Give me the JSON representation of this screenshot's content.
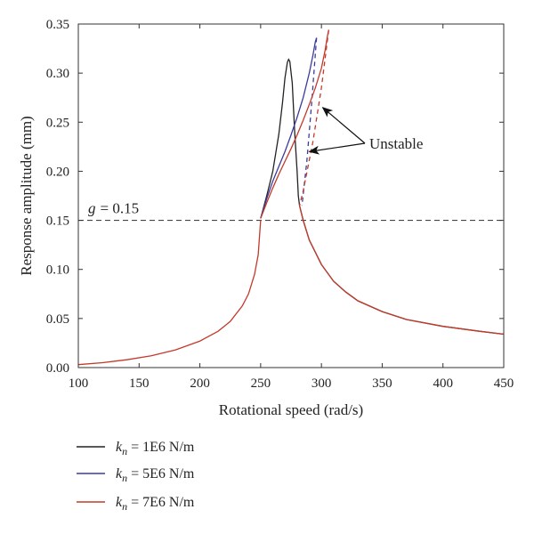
{
  "chart_data": {
    "type": "line",
    "title": "",
    "xlabel": "Rotational speed (rad/s)",
    "ylabel": "Response amplitude (mm)",
    "xlim": [
      100,
      450
    ],
    "ylim": [
      0,
      0.35
    ],
    "xticks": [
      "100",
      "150",
      "200",
      "250",
      "300",
      "350",
      "400",
      "450"
    ],
    "yticks": [
      "0.00",
      "0.05",
      "0.10",
      "0.15",
      "0.20",
      "0.25",
      "0.30",
      "0.35"
    ],
    "xtick_values": [
      100,
      150,
      200,
      250,
      300,
      350,
      400,
      450
    ],
    "ytick_values": [
      0,
      0.05,
      0.1,
      0.15,
      0.2,
      0.25,
      0.3,
      0.35
    ],
    "grid": false,
    "legend_position": "below",
    "threshold": {
      "label_symbol": "g",
      "label_value": "= 0.15",
      "y": 0.15,
      "color": "#444444"
    },
    "annotation": {
      "text": "Unstable",
      "targets": [
        {
          "x": 301,
          "y": 0.265
        },
        {
          "x": 290,
          "y": 0.22
        }
      ]
    },
    "shared_tail": {
      "color": "#c23a2a",
      "x": [
        100,
        120,
        140,
        160,
        180,
        200,
        215,
        225,
        235,
        240,
        245,
        248,
        250
      ],
      "y": [
        0.003,
        0.005,
        0.008,
        0.012,
        0.018,
        0.027,
        0.037,
        0.047,
        0.063,
        0.075,
        0.095,
        0.115,
        0.15
      ]
    },
    "series": [
      {
        "legend_symbol": "k",
        "legend_sub": "n",
        "legend_text": "= 1E6 N/m",
        "color": "#222222",
        "stable_upper": {
          "x": [
            250,
            255,
            260,
            265,
            268,
            270,
            272,
            273,
            274,
            276,
            278,
            280,
            281,
            282
          ],
          "y": [
            0.152,
            0.175,
            0.2,
            0.238,
            0.27,
            0.295,
            0.311,
            0.314,
            0.312,
            0.29,
            0.24,
            0.2,
            0.175,
            0.165
          ]
        },
        "stable_lower": {
          "x": [
            282,
            285,
            290,
            300,
            310,
            320,
            330,
            350,
            370,
            400,
            430,
            450
          ],
          "y": [
            0.165,
            0.15,
            0.13,
            0.105,
            0.088,
            0.077,
            0.068,
            0.057,
            0.049,
            0.042,
            0.037,
            0.034
          ]
        },
        "unstable": {
          "x": [],
          "y": []
        }
      },
      {
        "legend_symbol": "k",
        "legend_sub": "n",
        "legend_text": "= 5E6 N/m",
        "color": "#3b3b9c",
        "stable_upper": {
          "x": [
            250,
            255,
            260,
            265,
            270,
            275,
            280,
            285,
            290,
            293,
            295,
            296
          ],
          "y": [
            0.152,
            0.172,
            0.19,
            0.205,
            0.22,
            0.237,
            0.255,
            0.275,
            0.3,
            0.318,
            0.332,
            0.336
          ]
        },
        "stable_lower": {
          "x": [],
          "y": []
        },
        "unstable": {
          "x": [
            296,
            292,
            288,
            284
          ],
          "y": [
            0.336,
            0.27,
            0.21,
            0.165
          ]
        }
      },
      {
        "legend_symbol": "k",
        "legend_sub": "n",
        "legend_text": "= 7E6 N/m",
        "color": "#c23a2a",
        "stable_upper": {
          "x": [
            250,
            255,
            260,
            265,
            270,
            275,
            280,
            285,
            290,
            295,
            300,
            303,
            305,
            306
          ],
          "y": [
            0.152,
            0.168,
            0.183,
            0.197,
            0.21,
            0.223,
            0.237,
            0.252,
            0.268,
            0.285,
            0.305,
            0.323,
            0.338,
            0.344
          ]
        },
        "stable_lower": {
          "x": [
            282,
            285,
            290,
            300,
            310,
            320,
            330,
            350,
            370,
            400,
            430,
            450
          ],
          "y": [
            0.165,
            0.15,
            0.13,
            0.105,
            0.088,
            0.077,
            0.068,
            0.057,
            0.049,
            0.042,
            0.037,
            0.034
          ]
        },
        "unstable": {
          "x": [
            306,
            300,
            293,
            285,
            282
          ],
          "y": [
            0.344,
            0.285,
            0.23,
            0.18,
            0.165
          ]
        }
      }
    ]
  }
}
